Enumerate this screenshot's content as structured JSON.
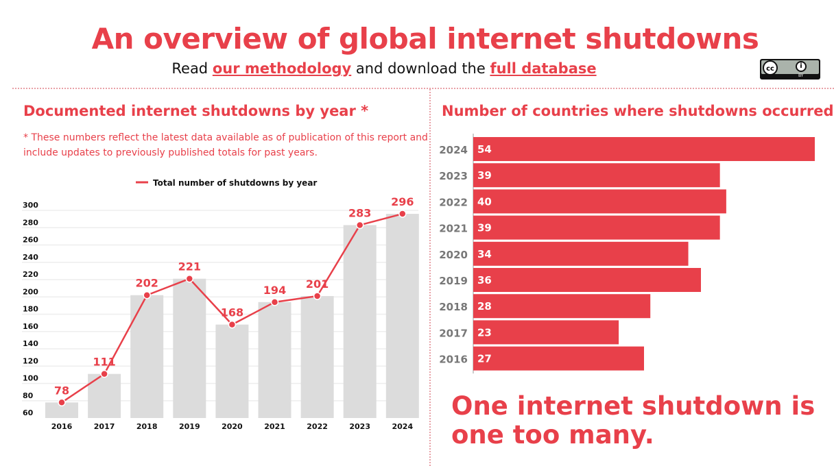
{
  "header": {
    "title": "An overview of global internet shutdowns",
    "subtitle_pre": "Read ",
    "methodology_link": "our methodology",
    "subtitle_mid": " and download the ",
    "database_link": "full database",
    "license_icon": "cc-by-icon",
    "license_cc": "cc",
    "license_by": "BY"
  },
  "colors": {
    "accent": "#e8404a",
    "bar_gray": "#dcdcdc"
  },
  "slogan": "One internet shutdown is one too many.",
  "chart_data": [
    {
      "type": "bar+line",
      "title": "Documented internet shutdowns by year *",
      "note": "* These numbers reflect the latest data available as of publication of this report and include updates to previously published totals for past years.",
      "legend": "Total number of shutdowns by year",
      "legend_position": "top",
      "categories": [
        "2016",
        "2017",
        "2018",
        "2019",
        "2020",
        "2021",
        "2022",
        "2023",
        "2024"
      ],
      "values": [
        78,
        111,
        202,
        221,
        168,
        194,
        201,
        283,
        296
      ],
      "ylim": [
        60,
        300
      ],
      "yticks": [
        60,
        80,
        100,
        120,
        140,
        160,
        180,
        200,
        220,
        240,
        260,
        280,
        300
      ],
      "grid": true
    },
    {
      "type": "bar",
      "orientation": "horizontal",
      "title": "Number of countries where shutdowns occurred",
      "categories": [
        "2024",
        "2023",
        "2022",
        "2021",
        "2020",
        "2019",
        "2018",
        "2017",
        "2016"
      ],
      "values": [
        54,
        39,
        40,
        39,
        34,
        36,
        28,
        23,
        27
      ]
    }
  ]
}
